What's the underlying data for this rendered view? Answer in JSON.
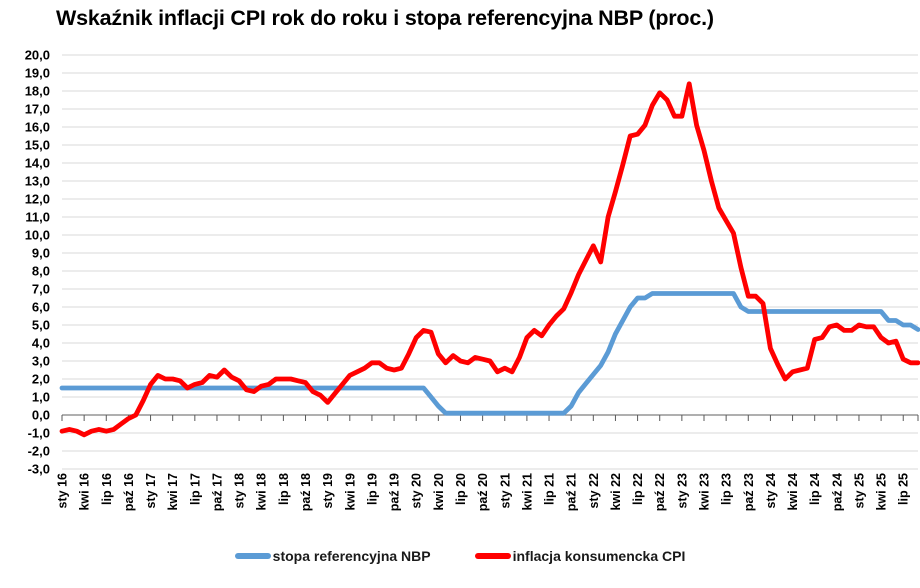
{
  "page": {
    "title": "Wskaźnik inflacji CPI rok do roku i stopa referencyjna NBP (proc.)",
    "background": "#FFFFFF"
  },
  "legend": {
    "position": "bottom-center",
    "items": [
      {
        "label": "stopa referencyjna NBP",
        "color": "#5B9BD5"
      },
      {
        "label": "inflacja konsumencka CPI",
        "color": "#FF0000"
      }
    ]
  },
  "chart_data": {
    "type": "line",
    "title": "Wskaźnik inflacji CPI rok do roku i stopa referencyjna NBP (proc.)",
    "n_points": 117,
    "x_first_month": "sty 16",
    "x_last_month": "wrz 25",
    "x_tick_interval_months": 3,
    "x_tick_labels": [
      "sty 16",
      "kwi 16",
      "lip 16",
      "paź 16",
      "sty 17",
      "kwi 17",
      "lip 17",
      "paź 17",
      "sty 18",
      "kwi 18",
      "lip 18",
      "paź 18",
      "sty 19",
      "kwi 19",
      "lip 19",
      "paź 19",
      "sty 20",
      "kwi 20",
      "lip 20",
      "paź 20",
      "sty 21",
      "kwi 21",
      "lip 21",
      "paź 21",
      "sty 22",
      "kwi 22",
      "lip 22",
      "paź 22",
      "sty 23",
      "kwi 23",
      "lip 23",
      "paź 23",
      "sty 24",
      "kwi 24",
      "lip 24",
      "paź 24",
      "sty 25",
      "kwi 25",
      "lip 25"
    ],
    "ylim": [
      -3,
      20
    ],
    "y_step": 1,
    "y_tick_labels": [
      "20,0",
      "19,0",
      "18,0",
      "17,0",
      "16,0",
      "15,0",
      "14,0",
      "13,0",
      "12,0",
      "11,0",
      "10,0",
      "9,0",
      "8,0",
      "7,0",
      "6,0",
      "5,0",
      "4,0",
      "3,0",
      "2,0",
      "1,0",
      "0,0",
      "-1,0",
      "-2,0",
      "-3,0"
    ],
    "grid": "horizontal",
    "legend_position": "bottom-center",
    "colors": {
      "grid": "#D9D9D9",
      "axis": "#7F7F7F",
      "tick": "#595959",
      "label": "#000000"
    },
    "series": [
      {
        "name": "stopa referencyjna NBP",
        "color": "#5B9BD5",
        "values": [
          1.5,
          1.5,
          1.5,
          1.5,
          1.5,
          1.5,
          1.5,
          1.5,
          1.5,
          1.5,
          1.5,
          1.5,
          1.5,
          1.5,
          1.5,
          1.5,
          1.5,
          1.5,
          1.5,
          1.5,
          1.5,
          1.5,
          1.5,
          1.5,
          1.5,
          1.5,
          1.5,
          1.5,
          1.5,
          1.5,
          1.5,
          1.5,
          1.5,
          1.5,
          1.5,
          1.5,
          1.5,
          1.5,
          1.5,
          1.5,
          1.5,
          1.5,
          1.5,
          1.5,
          1.5,
          1.5,
          1.5,
          1.5,
          1.5,
          1.5,
          1.0,
          0.5,
          0.1,
          0.1,
          0.1,
          0.1,
          0.1,
          0.1,
          0.1,
          0.1,
          0.1,
          0.1,
          0.1,
          0.1,
          0.1,
          0.1,
          0.1,
          0.1,
          0.1,
          0.5,
          1.25,
          1.75,
          2.25,
          2.75,
          3.5,
          4.5,
          5.25,
          6.0,
          6.5,
          6.5,
          6.75,
          6.75,
          6.75,
          6.75,
          6.75,
          6.75,
          6.75,
          6.75,
          6.75,
          6.75,
          6.75,
          6.75,
          6.0,
          5.75,
          5.75,
          5.75,
          5.75,
          5.75,
          5.75,
          5.75,
          5.75,
          5.75,
          5.75,
          5.75,
          5.75,
          5.75,
          5.75,
          5.75,
          5.75,
          5.75,
          5.75,
          5.75,
          5.25,
          5.25,
          5.0,
          5.0,
          4.75
        ]
      },
      {
        "name": "inflacja konsumencka CPI",
        "color": "#FF0000",
        "values": [
          -0.9,
          -0.8,
          -0.9,
          -1.1,
          -0.9,
          -0.8,
          -0.9,
          -0.8,
          -0.5,
          -0.2,
          0.0,
          0.8,
          1.7,
          2.2,
          2.0,
          2.0,
          1.9,
          1.5,
          1.7,
          1.8,
          2.2,
          2.1,
          2.5,
          2.1,
          1.9,
          1.4,
          1.3,
          1.6,
          1.7,
          2.0,
          2.0,
          2.0,
          1.9,
          1.8,
          1.3,
          1.1,
          0.7,
          1.2,
          1.7,
          2.2,
          2.4,
          2.6,
          2.9,
          2.9,
          2.6,
          2.5,
          2.6,
          3.4,
          4.3,
          4.7,
          4.6,
          3.4,
          2.9,
          3.3,
          3.0,
          2.9,
          3.2,
          3.1,
          3.0,
          2.4,
          2.6,
          2.4,
          3.2,
          4.3,
          4.7,
          4.4,
          5.0,
          5.5,
          5.9,
          6.8,
          7.8,
          8.6,
          9.4,
          8.5,
          11.0,
          12.4,
          13.9,
          15.5,
          15.6,
          16.1,
          17.2,
          17.9,
          17.5,
          16.6,
          16.6,
          18.4,
          16.1,
          14.7,
          13.0,
          11.5,
          10.8,
          10.1,
          8.2,
          6.6,
          6.6,
          6.2,
          3.7,
          2.8,
          2.0,
          2.4,
          2.5,
          2.6,
          4.2,
          4.3,
          4.9,
          5.0,
          4.7,
          4.7,
          5.0,
          4.9,
          4.9,
          4.3,
          4.0,
          4.1,
          3.1,
          2.9,
          2.9
        ]
      }
    ]
  }
}
